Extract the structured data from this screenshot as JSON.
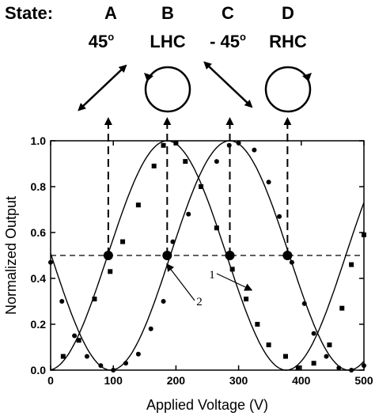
{
  "header": {
    "state_label": "State:",
    "states": [
      {
        "letter": "A",
        "polarization": "45",
        "degree": "o",
        "glyph": "double-arrow-ne"
      },
      {
        "letter": "B",
        "polarization": "LHC",
        "degree": "",
        "glyph": "circle-left"
      },
      {
        "letter": "C",
        "polarization": "- 45",
        "degree": "o",
        "glyph": "double-arrow-nw"
      },
      {
        "letter": "D",
        "polarization": "RHC",
        "degree": "",
        "glyph": "circle-right"
      }
    ]
  },
  "chart_data": {
    "type": "scatter",
    "xlabel": "Applied Voltage (V)",
    "ylabel": "Normalized Output",
    "xlim": [
      0,
      500
    ],
    "ylim": [
      0,
      1.0
    ],
    "xticks": [
      0,
      100,
      200,
      300,
      400,
      500
    ],
    "yticks": [
      0.0,
      0.2,
      0.4,
      0.6,
      0.8,
      1.0
    ],
    "grid": false,
    "series": [
      {
        "marker": "square",
        "fit": {
          "amplitude": 0.5,
          "offset": 0.5,
          "period": 380,
          "peak_at": 186
        },
        "points": [
          [
            20,
            0.06
          ],
          [
            45,
            0.13
          ],
          [
            70,
            0.31
          ],
          [
            95,
            0.43
          ],
          [
            115,
            0.56
          ],
          [
            140,
            0.72
          ],
          [
            165,
            0.89
          ],
          [
            180,
            0.98
          ],
          [
            200,
            0.99
          ],
          [
            215,
            0.91
          ],
          [
            240,
            0.8
          ],
          [
            265,
            0.62
          ],
          [
            290,
            0.44
          ],
          [
            312,
            0.31
          ],
          [
            330,
            0.2
          ],
          [
            348,
            0.11
          ],
          [
            375,
            0.06
          ],
          [
            395,
            0.01
          ],
          [
            420,
            0.03
          ],
          [
            445,
            0.11
          ],
          [
            465,
            0.27
          ],
          [
            480,
            0.46
          ],
          [
            500,
            0.59
          ]
        ]
      },
      {
        "marker": "circle",
        "fit": {
          "amplitude": 0.5,
          "offset": 0.5,
          "period": 380,
          "peak_at": 286
        },
        "points": [
          [
            0,
            0.47
          ],
          [
            18,
            0.3
          ],
          [
            38,
            0.15
          ],
          [
            58,
            0.06
          ],
          [
            80,
            0.02
          ],
          [
            100,
            0.0
          ],
          [
            120,
            0.03
          ],
          [
            140,
            0.07
          ],
          [
            160,
            0.18
          ],
          [
            180,
            0.3
          ],
          [
            195,
            0.56
          ],
          [
            220,
            0.68
          ],
          [
            240,
            0.8
          ],
          [
            265,
            0.91
          ],
          [
            285,
            0.98
          ],
          [
            300,
            0.99
          ],
          [
            325,
            0.96
          ],
          [
            348,
            0.82
          ],
          [
            365,
            0.67
          ],
          [
            385,
            0.47
          ],
          [
            405,
            0.29
          ],
          [
            420,
            0.16
          ],
          [
            440,
            0.06
          ],
          [
            460,
            0.01
          ],
          [
            480,
            0.0
          ],
          [
            500,
            0.02
          ]
        ]
      }
    ],
    "reference_line": {
      "y": 0.5,
      "style": "dashed"
    },
    "crossings": [
      92,
      186,
      286,
      378
    ],
    "annotations": [
      {
        "text": "1",
        "points_to": [
          320,
          0.35
        ]
      },
      {
        "text": "2",
        "points_to": [
          186,
          0.46
        ]
      }
    ]
  }
}
